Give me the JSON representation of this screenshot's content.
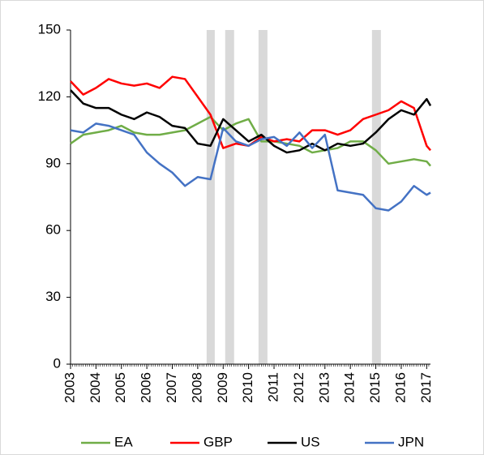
{
  "chart_data": {
    "type": "line",
    "x": [
      2003,
      2003.5,
      2004,
      2004.5,
      2005,
      2005.5,
      2006,
      2006.5,
      2007,
      2007.5,
      2008,
      2008.5,
      2009,
      2009.5,
      2010,
      2010.5,
      2011,
      2011.5,
      2012,
      2012.5,
      2013,
      2013.5,
      2014,
      2014.5,
      2015,
      2015.5,
      2016,
      2016.5,
      2017,
      2017.15
    ],
    "series": [
      {
        "name": "EA",
        "color": "#70ad47",
        "values": [
          99,
          103,
          104,
          105,
          107,
          104,
          103,
          103,
          104,
          105,
          108,
          111,
          105,
          108,
          110,
          100,
          100,
          99,
          98,
          95,
          96,
          97,
          100,
          100,
          96,
          90,
          91,
          92,
          91,
          89
        ]
      },
      {
        "name": "GBP",
        "color": "#ff0000",
        "values": [
          127,
          121,
          124,
          128,
          126,
          125,
          126,
          124,
          129,
          128,
          120,
          112,
          97,
          99,
          98,
          102,
          100,
          101,
          100,
          105,
          105,
          103,
          105,
          110,
          112,
          114,
          118,
          115,
          98,
          96
        ]
      },
      {
        "name": "US",
        "color": "#000000",
        "values": [
          123,
          117,
          115,
          115,
          112,
          110,
          113,
          111,
          107,
          106,
          99,
          98,
          110,
          105,
          100,
          103,
          98,
          95,
          96,
          99,
          96,
          99,
          98,
          99,
          104,
          110,
          114,
          112,
          119,
          116
        ]
      },
      {
        "name": "JPN",
        "color": "#4472c4",
        "values": [
          105,
          104,
          108,
          107,
          105,
          103,
          95,
          90,
          86,
          80,
          84,
          83,
          106,
          100,
          98,
          101,
          102,
          98,
          104,
          97,
          103,
          78,
          77,
          76,
          70,
          69,
          73,
          80,
          76,
          77
        ]
      }
    ],
    "shaded_periods": [
      [
        2008.35,
        2008.67
      ],
      [
        2009.08,
        2009.43
      ],
      [
        2010.39,
        2010.74
      ],
      [
        2014.85,
        2015.2
      ]
    ],
    "shade_color": "#d9d9d9",
    "xlim": [
      2003,
      2017.15
    ],
    "xticks": [
      2003,
      2004,
      2005,
      2006,
      2007,
      2008,
      2009,
      2010,
      2011,
      2012,
      2013,
      2014,
      2015,
      2016,
      2017
    ],
    "ylim": [
      0,
      150
    ],
    "yticks": [
      0,
      30,
      60,
      90,
      120,
      150
    ],
    "legend": "bottom"
  }
}
